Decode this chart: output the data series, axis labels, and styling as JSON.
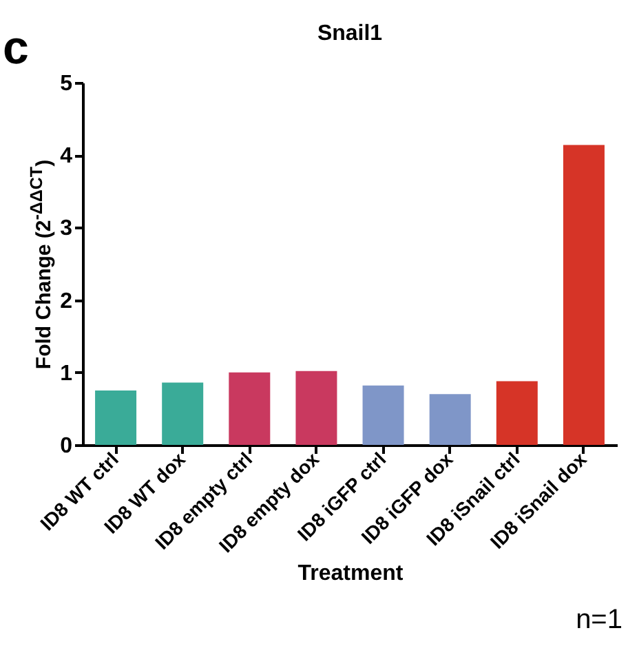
{
  "chart_data": {
    "type": "bar",
    "title": "Snail1",
    "xlabel": "Treatment",
    "ylabel": "Fold Change (2$^{-ΔΔCT}$)",
    "categories": [
      "ID8 WT ctrl",
      "ID8 WT dox",
      "ID8 empty ctrl",
      "ID8 empty dox",
      "ID8 iGFP ctrl",
      "ID8 iGFP dox",
      "ID8 iSnail ctrl",
      "ID8 iSnail dox"
    ],
    "values": [
      0.75,
      0.86,
      1.0,
      1.02,
      0.82,
      0.7,
      0.88,
      4.14
    ],
    "colors": [
      "#3aab98",
      "#3aab98",
      "#c9395f",
      "#c9395f",
      "#7f96c8",
      "#7f96c8",
      "#d63427",
      "#d63427"
    ],
    "ylim": [
      0,
      5
    ],
    "yticks": [
      0,
      1,
      2,
      3,
      4,
      5
    ],
    "grid": false,
    "legend": false,
    "annotations": [
      "c",
      "n=1"
    ]
  }
}
